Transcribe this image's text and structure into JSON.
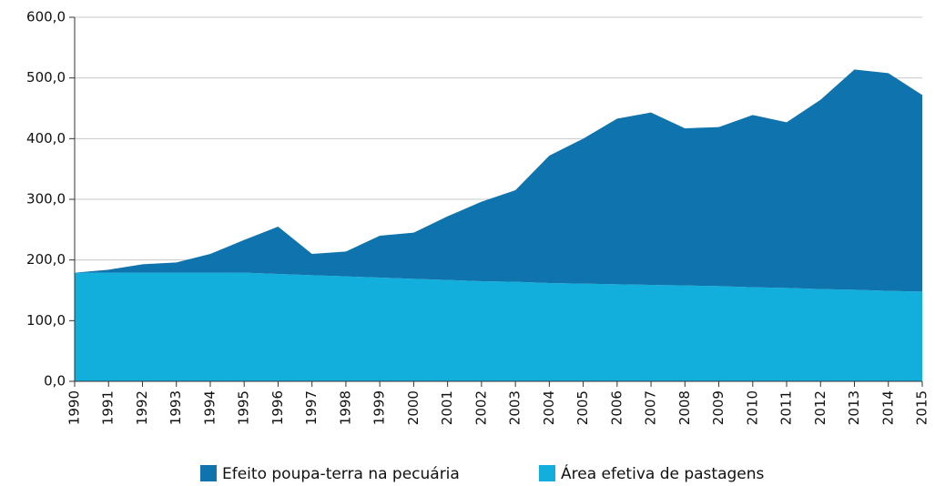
{
  "chart_data": {
    "type": "stacked_area",
    "x": [
      1990,
      1991,
      1992,
      1993,
      1994,
      1995,
      1996,
      1997,
      1998,
      1999,
      2000,
      2001,
      2002,
      2003,
      2004,
      2005,
      2006,
      2007,
      2008,
      2009,
      2010,
      2011,
      2012,
      2013,
      2014,
      2015
    ],
    "xlim": [
      1990,
      2015
    ],
    "series": [
      {
        "name": "Efeito poupa-terra na pecuária",
        "color": "#0f73ad",
        "values": [
          0,
          5,
          14,
          17,
          31,
          54,
          78,
          35,
          41,
          69,
          76,
          105,
          131,
          151,
          210,
          239,
          273,
          284,
          259,
          262,
          284,
          273,
          312,
          363,
          359,
          324
        ]
      },
      {
        "name": "Área efetiva de pastagens",
        "color": "#13afdc",
        "values": [
          179,
          179,
          179,
          179,
          179,
          179,
          177,
          175,
          173,
          171,
          169,
          167,
          165,
          164,
          162,
          161,
          160,
          159,
          158,
          157,
          155,
          154,
          152,
          151,
          149,
          148
        ]
      }
    ],
    "ylim": [
      0,
      600
    ],
    "yticks": [
      {
        "value": 0,
        "label": "0,0"
      },
      {
        "value": 100,
        "label": "100,0"
      },
      {
        "value": 200,
        "label": "200,0"
      },
      {
        "value": 300,
        "label": "300,0"
      },
      {
        "value": 400,
        "label": "400,0"
      },
      {
        "value": 500,
        "label": "500,0"
      },
      {
        "value": 600,
        "label": "600,0"
      }
    ],
    "grid": true
  }
}
